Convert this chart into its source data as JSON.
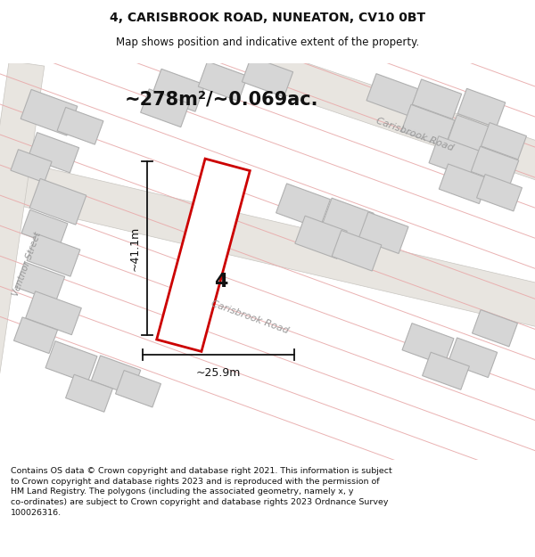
{
  "title_line1": "4, CARISBROOK ROAD, NUNEATON, CV10 0BT",
  "title_line2": "Map shows position and indicative extent of the property.",
  "area_text": "~278m²/~0.069ac.",
  "property_number": "4",
  "dim_height": "~41.1m",
  "dim_width": "~25.9m",
  "road_label_upper": "Carisbrook Road",
  "road_label_lower": "Carisbrook Road",
  "street_label": "Ventnor Street",
  "footer_text": "Contains OS data © Crown copyright and database right 2021. This information is subject to Crown copyright and database rights 2023 and is reproduced with the permission of HM Land Registry. The polygons (including the associated geometry, namely x, y co-ordinates) are subject to Crown copyright and database rights 2023 Ordnance Survey 100026316.",
  "map_bg": "#f2f0ed",
  "plot_fill": "#ffffff",
  "plot_edge": "#cc0000",
  "building_fill": "#d6d6d6",
  "building_edge": "#b0b0b0",
  "pink": "#e8aaaa",
  "dim_color": "#111111",
  "text_color": "#111111",
  "road_fill": "#e8e5e0",
  "road_edge": "#c8c5c0"
}
